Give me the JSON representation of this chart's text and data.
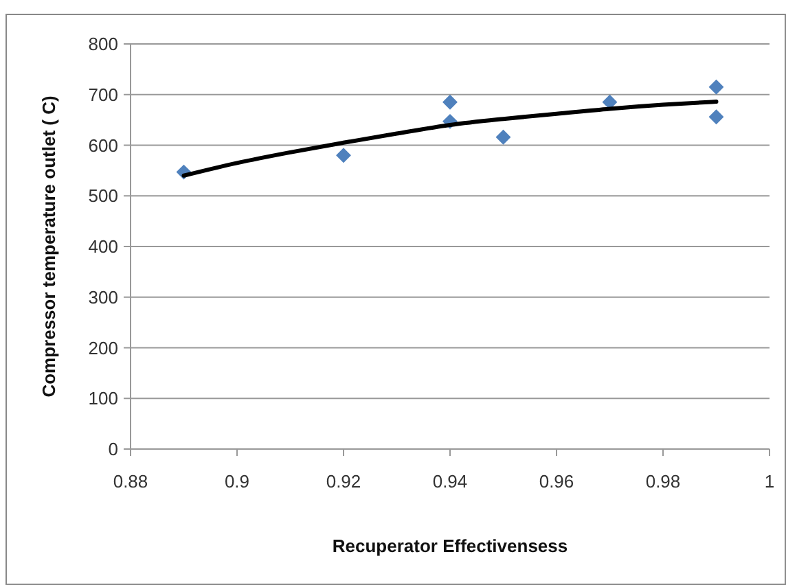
{
  "chart_data": {
    "type": "scatter",
    "xlabel": "Recuperator Effectivensess",
    "ylabel": "Compressor temperature outlet ( C)",
    "series": [
      {
        "color": "#4f81bd",
        "marker": "diamond",
        "x": [
          0.89,
          0.92,
          0.94,
          0.94,
          0.95,
          0.97,
          0.99,
          0.99
        ],
        "values": [
          547,
          580,
          685,
          647,
          616,
          685,
          715,
          656
        ]
      },
      {
        "type": "line",
        "color": "#000000",
        "marker": "none",
        "x": [
          0.89,
          0.9,
          0.91,
          0.92,
          0.93,
          0.94,
          0.95,
          0.96,
          0.97,
          0.98,
          0.99
        ],
        "values": [
          540,
          565,
          586,
          605,
          623,
          640,
          652,
          662,
          672,
          680,
          686
        ]
      }
    ],
    "xlim": [
      0.88,
      1
    ],
    "xticks": [
      0.88,
      0.9,
      0.92,
      0.94,
      0.96,
      0.98,
      1
    ],
    "ylim": [
      0,
      800
    ],
    "yticks": [
      0,
      100,
      200,
      300,
      400,
      500,
      600,
      700,
      800
    ],
    "grid": "y"
  }
}
